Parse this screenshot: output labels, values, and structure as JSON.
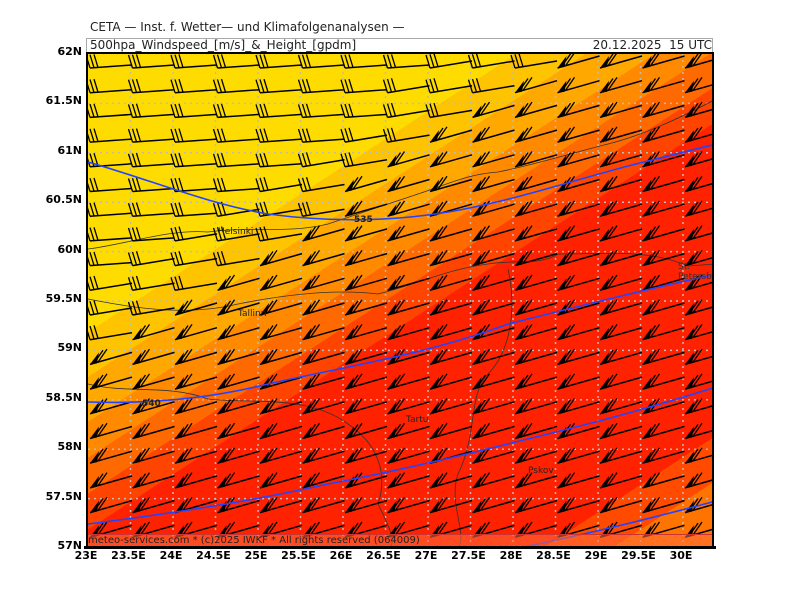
{
  "header": {
    "title": "CETA — Inst. f. Wetter— und Klimafolgenanalysen —",
    "subtitle": "500hpa_Windspeed_[m/s]_&_Height_[gpdm]",
    "datetime": "20.12.2025  15 UTC"
  },
  "axes": {
    "lat_labels": [
      "62N",
      "61.5N",
      "61N",
      "60.5N",
      "60N",
      "59.5N",
      "59N",
      "58.5N",
      "58N",
      "57.5N",
      "57N"
    ],
    "lon_labels": [
      "23E",
      "23.5E",
      "24E",
      "24.5E",
      "25E",
      "25.5E",
      "26E",
      "26.5E",
      "27E",
      "27.5E",
      "28E",
      "28.5E",
      "29E",
      "29.5E",
      "30E"
    ]
  },
  "cities": {
    "helsinki": "Helsinki",
    "tallinn": "Tallinn",
    "tartu": "Tartu",
    "petersburg": "St. Petersbg.",
    "pskov": "Pskov"
  },
  "contours": {
    "c535": "535",
    "c540": "540"
  },
  "footer": "meteo-services.com * (c)2025 IWKF * All rights reserved (064009)",
  "colors": {
    "yellow": "#ffdc00",
    "red": "#ff2200",
    "height_contour": "#2244ff"
  }
}
